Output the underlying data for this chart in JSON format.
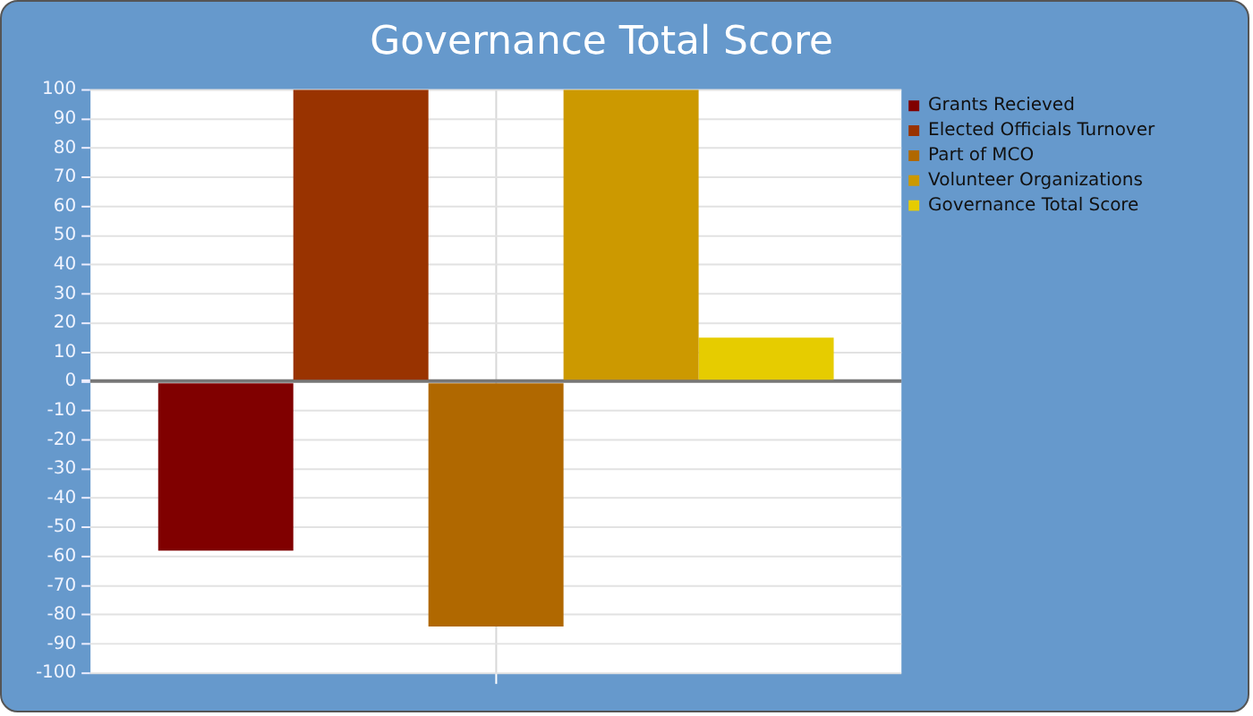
{
  "chart_data": {
    "type": "bar",
    "title": "Governance Total Score",
    "categories": [
      null
    ],
    "series": [
      {
        "name": "Grants Recieved",
        "color": "#800000",
        "values": [
          -58
        ]
      },
      {
        "name": "Elected Officials Turnover",
        "color": "#993300",
        "values": [
          100
        ]
      },
      {
        "name": "Part of MCO",
        "color": "#b06800",
        "values": [
          -84
        ]
      },
      {
        "name": "Volunteer Organizations",
        "color": "#cc9900",
        "values": [
          100
        ]
      },
      {
        "name": "Governance Total Score",
        "color": "#e6cc00",
        "values": [
          15
        ]
      }
    ],
    "ylim": [
      -100,
      100
    ],
    "yticks": [
      -100,
      -90,
      -80,
      -70,
      -60,
      -50,
      -40,
      -30,
      -20,
      -10,
      0,
      10,
      20,
      30,
      40,
      50,
      60,
      70,
      80,
      90,
      100
    ],
    "grid": true,
    "legend": "top right",
    "tick_labels": "y"
  }
}
